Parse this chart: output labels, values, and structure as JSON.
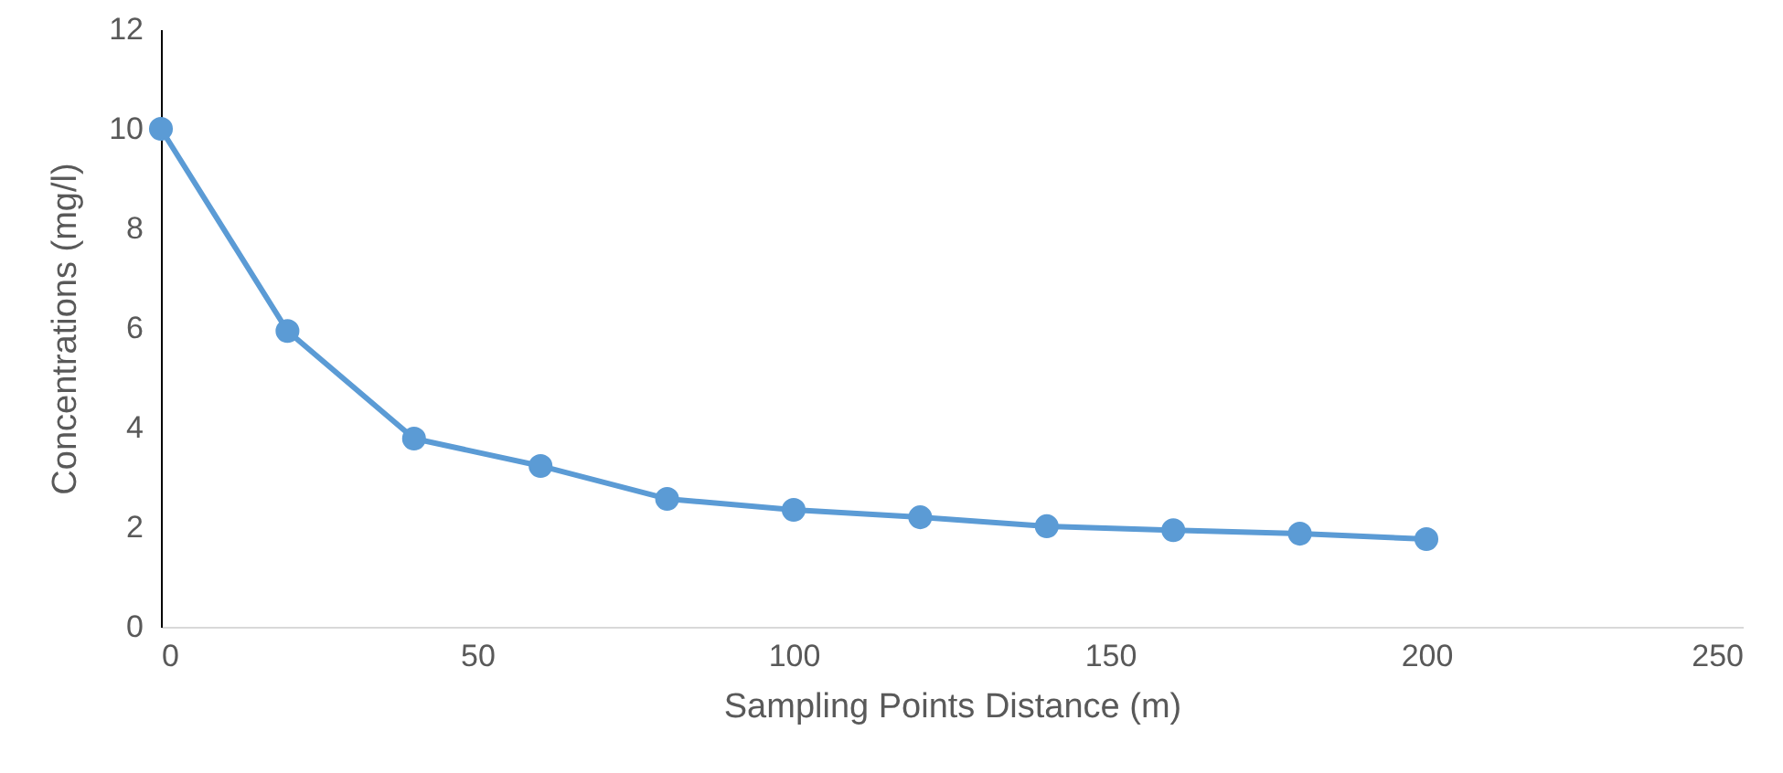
{
  "chart_data": {
    "type": "line",
    "xlabel": "Sampling Points Distance (m)",
    "ylabel": "Concentrations (mg/l)",
    "x": [
      0,
      20,
      40,
      60,
      80,
      100,
      120,
      140,
      160,
      180,
      200
    ],
    "series": [
      {
        "color": "#5b9bd5",
        "values": [
          10,
          5.94,
          3.78,
          3.23,
          2.57,
          2.35,
          2.2,
          2.02,
          1.94,
          1.87,
          1.76
        ]
      }
    ],
    "xlim": [
      0,
      250
    ],
    "xticks": [
      0,
      50,
      100,
      150,
      200,
      250
    ],
    "ylim": [
      0,
      12
    ],
    "yticks": [
      0,
      2,
      4,
      6,
      8,
      10,
      12
    ],
    "grid": false,
    "marker": "circle",
    "line_style": "solid"
  }
}
